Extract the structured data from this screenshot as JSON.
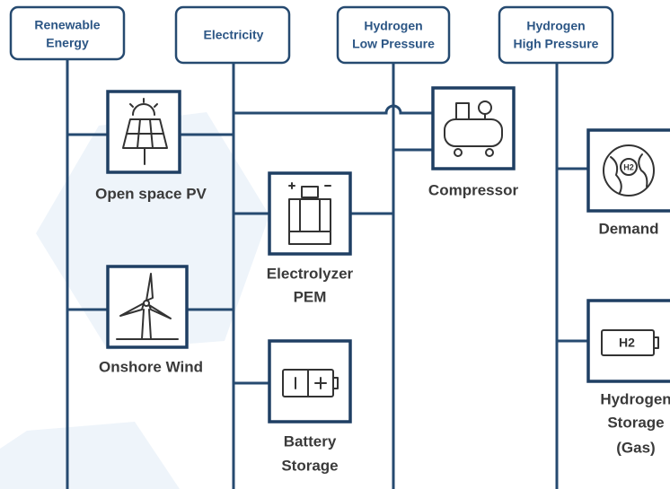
{
  "headers": [
    [
      "Renewable",
      "Energy"
    ],
    [
      "Electricity"
    ],
    [
      "Hydrogen",
      "Low Pressure"
    ],
    [
      "Hydrogen",
      "High Pressure"
    ]
  ],
  "nodes": [
    {
      "label": [
        "Open space PV"
      ]
    },
    {
      "label": [
        "Onshore Wind"
      ]
    },
    {
      "label": [
        "Electrolyzer",
        "PEM"
      ]
    },
    {
      "label": [
        "Battery",
        "Storage"
      ]
    },
    {
      "label": [
        "Compressor"
      ]
    },
    {
      "label": [
        "Demand"
      ],
      "icon_text": "H2"
    },
    {
      "label": [
        "Hydrogen",
        "Storage",
        "(Gas)"
      ],
      "icon_text": "H2"
    }
  ]
}
